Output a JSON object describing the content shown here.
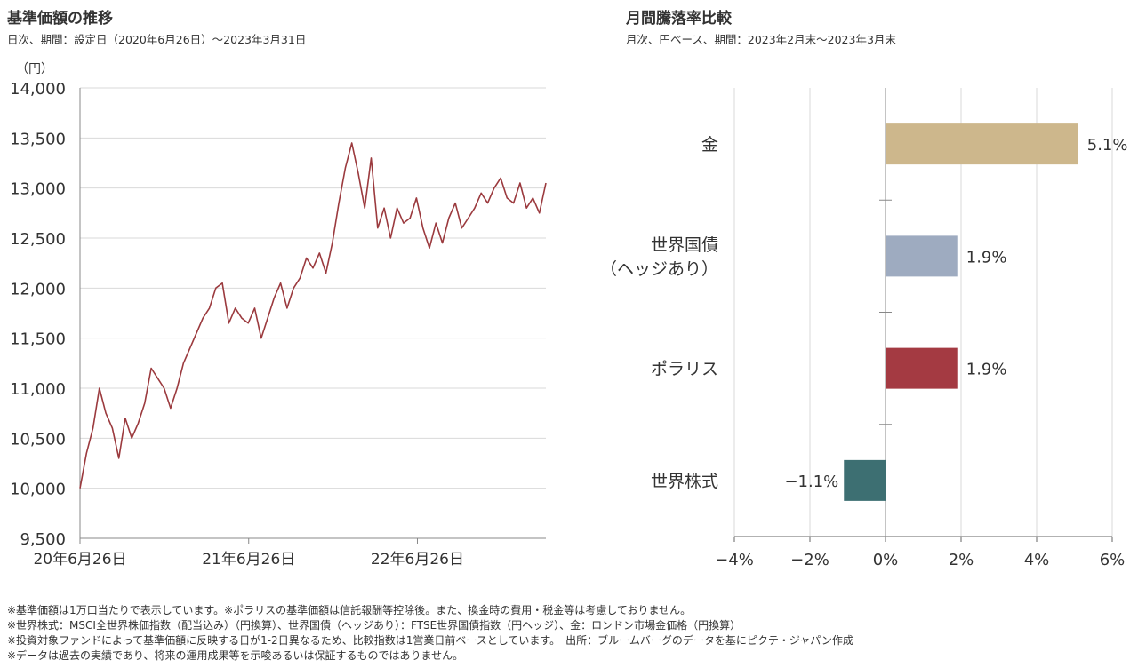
{
  "left_panel": {
    "title": "基準価額の推移",
    "subtitle": "日次、期間：設定日（2020年6月26日）～2023年3月31日"
  },
  "right_panel": {
    "title": "月間騰落率比較",
    "subtitle": "月次、円ベース、期間：2023年2月末～2023年3月末"
  },
  "chart_data": [
    {
      "type": "line",
      "title": "基準価額の推移",
      "ylabel": "（円）",
      "ylim": [
        9500,
        14000
      ],
      "yticks": [
        9500,
        10000,
        10500,
        11000,
        11500,
        12000,
        12500,
        13000,
        13500,
        14000
      ],
      "ytick_labels": [
        "9,500",
        "10,000",
        "10,500",
        "11,000",
        "11,500",
        "12,000",
        "12,500",
        "13,000",
        "13,500",
        "14,000"
      ],
      "xtick_labels": [
        "20年6月26日",
        "21年6月26日",
        "22年6月26日"
      ],
      "x": [
        "2020-06-26",
        "2020-07-10",
        "2020-07-24",
        "2020-08-07",
        "2020-08-21",
        "2020-09-04",
        "2020-09-18",
        "2020-10-02",
        "2020-10-16",
        "2020-10-30",
        "2020-11-13",
        "2020-11-27",
        "2020-12-11",
        "2020-12-25",
        "2021-01-08",
        "2021-01-22",
        "2021-02-05",
        "2021-02-19",
        "2021-03-05",
        "2021-03-19",
        "2021-04-02",
        "2021-04-16",
        "2021-04-30",
        "2021-05-14",
        "2021-05-28",
        "2021-06-11",
        "2021-06-25",
        "2021-07-09",
        "2021-07-23",
        "2021-08-06",
        "2021-08-20",
        "2021-09-03",
        "2021-09-17",
        "2021-10-01",
        "2021-10-15",
        "2021-10-29",
        "2021-11-12",
        "2021-11-26",
        "2021-12-10",
        "2021-12-24",
        "2022-01-07",
        "2022-01-21",
        "2022-02-04",
        "2022-02-18",
        "2022-03-04",
        "2022-03-18",
        "2022-04-01",
        "2022-04-15",
        "2022-04-29",
        "2022-05-13",
        "2022-05-27",
        "2022-06-10",
        "2022-06-24",
        "2022-07-08",
        "2022-07-22",
        "2022-08-05",
        "2022-08-19",
        "2022-09-02",
        "2022-09-16",
        "2022-09-30",
        "2022-10-14",
        "2022-10-28",
        "2022-11-11",
        "2022-11-25",
        "2022-12-09",
        "2022-12-23",
        "2023-01-06",
        "2023-01-20",
        "2023-02-03",
        "2023-02-17",
        "2023-03-03",
        "2023-03-17",
        "2023-03-31"
      ],
      "series": [
        {
          "color": "#9b3a3e",
          "values": [
            10000,
            10350,
            10600,
            11000,
            10750,
            10600,
            10300,
            10700,
            10500,
            10650,
            10850,
            11200,
            11100,
            11000,
            10800,
            11000,
            11250,
            11400,
            11550,
            11700,
            11800,
            12000,
            12050,
            11650,
            11800,
            11700,
            11650,
            11800,
            11500,
            11700,
            11900,
            12050,
            11800,
            12000,
            12100,
            12300,
            12200,
            12350,
            12150,
            12450,
            12850,
            13200,
            13450,
            13150,
            12800,
            13300,
            12600,
            12800,
            12500,
            12800,
            12650,
            12700,
            12900,
            12600,
            12400,
            12650,
            12450,
            12700,
            12850,
            12600,
            12700,
            12800,
            12950,
            12850,
            13000,
            13100,
            12900,
            12850,
            13050,
            12800,
            12900,
            12750,
            13050
          ]
        }
      ]
    },
    {
      "type": "bar",
      "orientation": "horizontal",
      "title": "月間騰落率比較",
      "categories": [
        "金",
        "世界国債\n（ヘッジあり）",
        "ポラリス",
        "世界株式"
      ],
      "values": [
        5.1,
        1.9,
        1.9,
        -1.1
      ],
      "value_labels": [
        "5.1%",
        "1.9%",
        "1.9%",
        "−1.1%"
      ],
      "colors": [
        "#cdb78c",
        "#9eabc0",
        "#a43a42",
        "#3d6f72"
      ],
      "xlim": [
        -4,
        6
      ],
      "xticks": [
        -4,
        -2,
        0,
        2,
        4,
        6
      ],
      "xtick_labels": [
        "−4%",
        "−2%",
        "0%",
        "2%",
        "4%",
        "6%"
      ],
      "grid": true
    }
  ],
  "notes": [
    "※基準価額は1万口当たりで表示しています。※ポラリスの基準価額は信託報酬等控除後。また、換金時の費用・税金等は考慮しておりません。",
    "※世界株式：MSCI全世界株価指数（配当込み）（円換算）、世界国債（ヘッジあり）：FTSE世界国債指数（円ヘッジ）、金：ロンドン市場金価格（円換算）",
    "※投資対象ファンドによって基準価額に反映する日が1-2日異なるため、比較指数は1営業日前ベースとしています。　出所：ブルームバーグのデータを基にピクテ・ジャパン作成",
    "※データは過去の実績であり、将来の運用成果等を示唆あるいは保証するものではありません。"
  ]
}
